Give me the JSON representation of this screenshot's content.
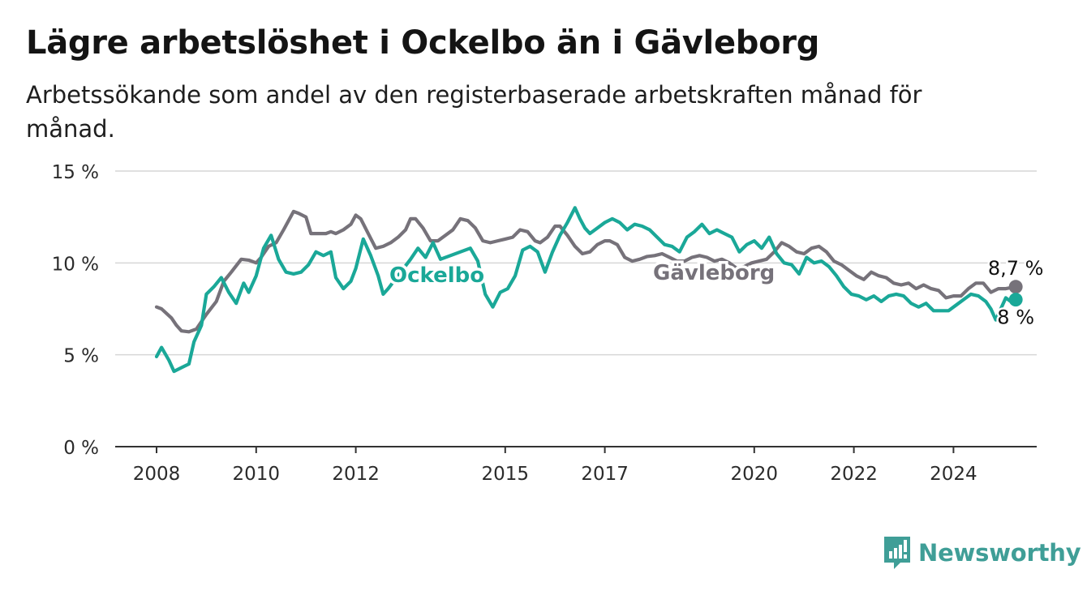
{
  "title": "Lägre arbetslöshet i Ockelbo än i Gävleborg",
  "subtitle": "Arbetssökande som andel av den registerbaserade arbetskraften månad för månad.",
  "brand": {
    "name": "Newsworthy",
    "color": "#3f9e97",
    "icon": "bar-chart-exclamation-icon"
  },
  "chart_data": {
    "type": "line",
    "ylim": [
      0,
      15
    ],
    "xlim": [
      2008,
      2025.5
    ],
    "y_ticks": [
      0,
      5,
      10,
      15
    ],
    "y_tick_labels": [
      "0 %",
      "5 %",
      "10 %",
      "15 %"
    ],
    "x_ticks": [
      2008,
      2010,
      2012,
      2015,
      2017,
      2020,
      2022,
      2024
    ],
    "x_tick_labels": [
      "2008",
      "2010",
      "2012",
      "2015",
      "2017",
      "2020",
      "2022",
      "2024"
    ],
    "grid": true,
    "legend": "inline labels",
    "series": [
      {
        "name": "Gävleborg",
        "color": "#76727a",
        "end_label": "8,7 %",
        "points": [
          [
            2008.0,
            7.6
          ],
          [
            2008.1,
            7.5
          ],
          [
            2008.3,
            7.0
          ],
          [
            2008.4,
            6.6
          ],
          [
            2008.5,
            6.3
          ],
          [
            2008.65,
            6.25
          ],
          [
            2008.8,
            6.4
          ],
          [
            2009.0,
            7.2
          ],
          [
            2009.2,
            7.9
          ],
          [
            2009.35,
            9.0
          ],
          [
            2009.5,
            9.5
          ],
          [
            2009.7,
            10.2
          ],
          [
            2009.85,
            10.15
          ],
          [
            2010.0,
            10.0
          ],
          [
            2010.1,
            10.3
          ],
          [
            2010.25,
            10.9
          ],
          [
            2010.4,
            11.1
          ],
          [
            2010.55,
            11.8
          ],
          [
            2010.65,
            12.3
          ],
          [
            2010.75,
            12.8
          ],
          [
            2010.85,
            12.7
          ],
          [
            2011.0,
            12.5
          ],
          [
            2011.1,
            11.6
          ],
          [
            2011.25,
            11.6
          ],
          [
            2011.4,
            11.6
          ],
          [
            2011.5,
            11.7
          ],
          [
            2011.6,
            11.6
          ],
          [
            2011.75,
            11.8
          ],
          [
            2011.9,
            12.1
          ],
          [
            2012.0,
            12.6
          ],
          [
            2012.1,
            12.4
          ],
          [
            2012.25,
            11.6
          ],
          [
            2012.4,
            10.8
          ],
          [
            2012.55,
            10.9
          ],
          [
            2012.7,
            11.1
          ],
          [
            2012.85,
            11.4
          ],
          [
            2013.0,
            11.8
          ],
          [
            2013.1,
            12.4
          ],
          [
            2013.2,
            12.4
          ],
          [
            2013.35,
            11.9
          ],
          [
            2013.5,
            11.2
          ],
          [
            2013.65,
            11.2
          ],
          [
            2013.8,
            11.5
          ],
          [
            2013.95,
            11.8
          ],
          [
            2014.1,
            12.4
          ],
          [
            2014.25,
            12.3
          ],
          [
            2014.4,
            11.9
          ],
          [
            2014.55,
            11.2
          ],
          [
            2014.7,
            11.1
          ],
          [
            2014.85,
            11.2
          ],
          [
            2015.0,
            11.3
          ],
          [
            2015.15,
            11.4
          ],
          [
            2015.3,
            11.8
          ],
          [
            2015.45,
            11.7
          ],
          [
            2015.6,
            11.2
          ],
          [
            2015.7,
            11.1
          ],
          [
            2015.85,
            11.4
          ],
          [
            2016.0,
            12.0
          ],
          [
            2016.1,
            12.0
          ],
          [
            2016.25,
            11.5
          ],
          [
            2016.4,
            10.9
          ],
          [
            2016.55,
            10.5
          ],
          [
            2016.7,
            10.6
          ],
          [
            2016.85,
            11.0
          ],
          [
            2017.0,
            11.2
          ],
          [
            2017.1,
            11.2
          ],
          [
            2017.25,
            11.0
          ],
          [
            2017.4,
            10.3
          ],
          [
            2017.55,
            10.1
          ],
          [
            2017.7,
            10.2
          ],
          [
            2017.85,
            10.35
          ],
          [
            2018.0,
            10.4
          ],
          [
            2018.15,
            10.5
          ],
          [
            2018.3,
            10.3
          ],
          [
            2018.45,
            10.1
          ],
          [
            2018.6,
            10.1
          ],
          [
            2018.75,
            10.3
          ],
          [
            2018.9,
            10.4
          ],
          [
            2019.05,
            10.3
          ],
          [
            2019.2,
            10.1
          ],
          [
            2019.35,
            10.2
          ],
          [
            2019.5,
            10.0
          ],
          [
            2019.65,
            9.7
          ],
          [
            2019.8,
            9.8
          ],
          [
            2019.95,
            10.0
          ],
          [
            2020.1,
            10.1
          ],
          [
            2020.25,
            10.2
          ],
          [
            2020.4,
            10.6
          ],
          [
            2020.55,
            11.1
          ],
          [
            2020.7,
            10.9
          ],
          [
            2020.85,
            10.6
          ],
          [
            2021.0,
            10.5
          ],
          [
            2021.15,
            10.8
          ],
          [
            2021.3,
            10.9
          ],
          [
            2021.45,
            10.6
          ],
          [
            2021.6,
            10.1
          ],
          [
            2021.75,
            9.9
          ],
          [
            2021.9,
            9.6
          ],
          [
            2022.05,
            9.3
          ],
          [
            2022.2,
            9.1
          ],
          [
            2022.35,
            9.5
          ],
          [
            2022.5,
            9.3
          ],
          [
            2022.65,
            9.2
          ],
          [
            2022.8,
            8.9
          ],
          [
            2022.95,
            8.8
          ],
          [
            2023.1,
            8.9
          ],
          [
            2023.25,
            8.6
          ],
          [
            2023.4,
            8.8
          ],
          [
            2023.55,
            8.6
          ],
          [
            2023.7,
            8.5
          ],
          [
            2023.85,
            8.1
          ],
          [
            2024.0,
            8.2
          ],
          [
            2024.15,
            8.2
          ],
          [
            2024.3,
            8.6
          ],
          [
            2024.45,
            8.9
          ],
          [
            2024.6,
            8.9
          ],
          [
            2024.75,
            8.4
          ],
          [
            2024.9,
            8.6
          ],
          [
            2025.05,
            8.6
          ],
          [
            2025.25,
            8.7
          ]
        ]
      },
      {
        "name": "Ockelbo",
        "color": "#1aa898",
        "end_label": "8 %",
        "points": [
          [
            2008.0,
            4.9
          ],
          [
            2008.1,
            5.4
          ],
          [
            2008.25,
            4.7
          ],
          [
            2008.35,
            4.1
          ],
          [
            2008.5,
            4.3
          ],
          [
            2008.65,
            4.5
          ],
          [
            2008.75,
            5.7
          ],
          [
            2008.9,
            6.6
          ],
          [
            2009.0,
            8.3
          ],
          [
            2009.15,
            8.7
          ],
          [
            2009.3,
            9.2
          ],
          [
            2009.45,
            8.4
          ],
          [
            2009.6,
            7.8
          ],
          [
            2009.75,
            8.9
          ],
          [
            2009.85,
            8.4
          ],
          [
            2010.0,
            9.3
          ],
          [
            2010.15,
            10.8
          ],
          [
            2010.3,
            11.5
          ],
          [
            2010.45,
            10.2
          ],
          [
            2010.6,
            9.5
          ],
          [
            2010.75,
            9.4
          ],
          [
            2010.9,
            9.5
          ],
          [
            2011.05,
            9.9
          ],
          [
            2011.2,
            10.6
          ],
          [
            2011.35,
            10.4
          ],
          [
            2011.5,
            10.6
          ],
          [
            2011.6,
            9.2
          ],
          [
            2011.75,
            8.6
          ],
          [
            2011.9,
            9.0
          ],
          [
            2012.0,
            9.7
          ],
          [
            2012.15,
            11.3
          ],
          [
            2012.3,
            10.4
          ],
          [
            2012.45,
            9.3
          ],
          [
            2012.55,
            8.3
          ],
          [
            2012.65,
            8.6
          ],
          [
            2013.1,
            10.2
          ],
          [
            2013.25,
            10.8
          ],
          [
            2013.4,
            10.3
          ],
          [
            2013.55,
            11.1
          ],
          [
            2013.7,
            10.2
          ],
          [
            2014.3,
            10.8
          ],
          [
            2014.45,
            10.1
          ],
          [
            2014.6,
            8.3
          ],
          [
            2014.75,
            7.6
          ],
          [
            2014.9,
            8.4
          ],
          [
            2015.05,
            8.6
          ],
          [
            2015.2,
            9.3
          ],
          [
            2015.35,
            10.7
          ],
          [
            2015.5,
            10.9
          ],
          [
            2015.65,
            10.6
          ],
          [
            2015.8,
            9.5
          ],
          [
            2015.95,
            10.6
          ],
          [
            2016.1,
            11.5
          ],
          [
            2016.25,
            12.2
          ],
          [
            2016.4,
            13.0
          ],
          [
            2016.5,
            12.4
          ],
          [
            2016.6,
            11.9
          ],
          [
            2016.7,
            11.6
          ],
          [
            2016.85,
            11.9
          ],
          [
            2017.0,
            12.2
          ],
          [
            2017.15,
            12.4
          ],
          [
            2017.3,
            12.2
          ],
          [
            2017.45,
            11.8
          ],
          [
            2017.6,
            12.1
          ],
          [
            2017.75,
            12.0
          ],
          [
            2017.9,
            11.8
          ],
          [
            2018.05,
            11.4
          ],
          [
            2018.2,
            11.0
          ],
          [
            2018.35,
            10.9
          ],
          [
            2018.5,
            10.6
          ],
          [
            2018.65,
            11.4
          ],
          [
            2018.8,
            11.7
          ],
          [
            2018.95,
            12.1
          ],
          [
            2019.1,
            11.6
          ],
          [
            2019.25,
            11.8
          ],
          [
            2019.4,
            11.6
          ],
          [
            2019.55,
            11.4
          ],
          [
            2019.7,
            10.6
          ],
          [
            2019.85,
            11.0
          ],
          [
            2020.0,
            11.2
          ],
          [
            2020.15,
            10.8
          ],
          [
            2020.3,
            11.4
          ],
          [
            2020.45,
            10.5
          ],
          [
            2020.6,
            10.0
          ],
          [
            2020.75,
            9.9
          ],
          [
            2020.9,
            9.4
          ],
          [
            2021.05,
            10.3
          ],
          [
            2021.2,
            10.0
          ],
          [
            2021.35,
            10.1
          ],
          [
            2021.5,
            9.8
          ],
          [
            2021.65,
            9.3
          ],
          [
            2021.8,
            8.7
          ],
          [
            2021.95,
            8.3
          ],
          [
            2022.1,
            8.2
          ],
          [
            2022.25,
            8.0
          ],
          [
            2022.4,
            8.2
          ],
          [
            2022.55,
            7.9
          ],
          [
            2022.7,
            8.2
          ],
          [
            2022.85,
            8.3
          ],
          [
            2023.0,
            8.2
          ],
          [
            2023.15,
            7.8
          ],
          [
            2023.3,
            7.6
          ],
          [
            2023.45,
            7.8
          ],
          [
            2023.6,
            7.4
          ],
          [
            2023.75,
            7.4
          ],
          [
            2023.9,
            7.4
          ],
          [
            2024.05,
            7.7
          ],
          [
            2024.2,
            8.0
          ],
          [
            2024.35,
            8.3
          ],
          [
            2024.5,
            8.2
          ],
          [
            2024.65,
            7.9
          ],
          [
            2024.75,
            7.5
          ],
          [
            2024.85,
            6.9
          ],
          [
            2025.05,
            8.1
          ],
          [
            2025.2,
            7.8
          ],
          [
            2025.25,
            8.0
          ]
        ]
      }
    ]
  }
}
